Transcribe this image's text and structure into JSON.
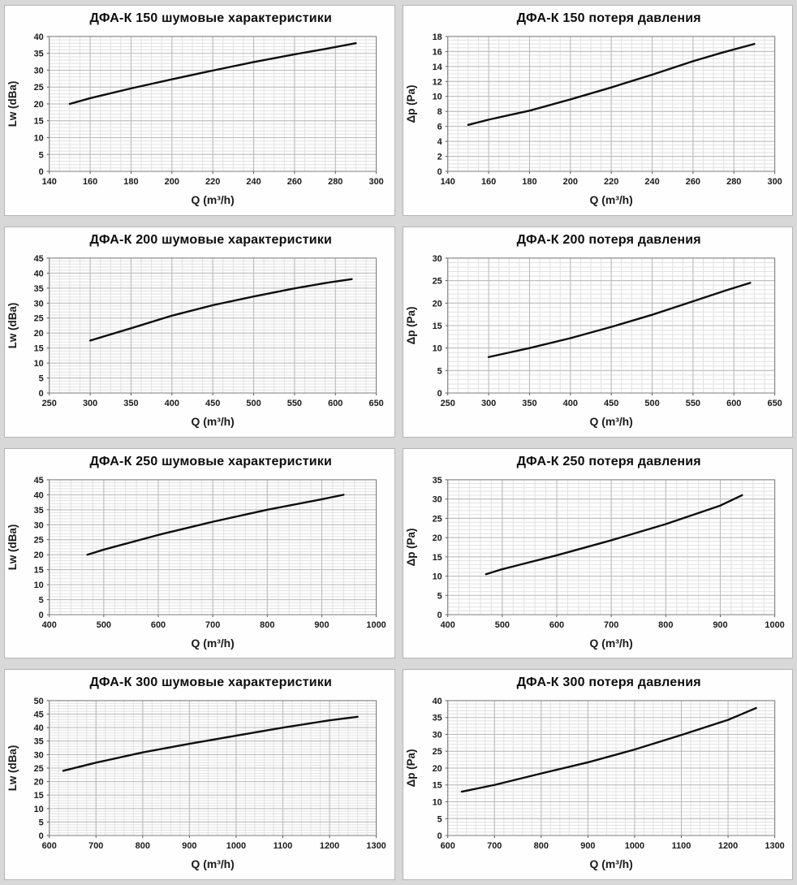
{
  "page": {
    "background": "#d8d8d8"
  },
  "colors": {
    "panel_bg": "#fefefe",
    "panel_border": "#b5b5b5",
    "grid_minor": "#e2e2e2",
    "grid_major": "#b8b8b8",
    "plot_border": "#7f7f7f",
    "tick": "#555555",
    "curve": "#0d0d0d",
    "text": "#1a1a1a"
  },
  "chart_data": [
    {
      "type": "line",
      "title": "ДФА-К 150 шумовые характеристики",
      "xlabel": "Q (m³/h)",
      "ylabel": "Lw (dBa)",
      "xlim": [
        140,
        300
      ],
      "ylim": [
        0,
        40
      ],
      "x_major": 20,
      "y_major": 5,
      "x_minor_div": 4,
      "y_minor_div": 5,
      "grid": "on",
      "legend": "none",
      "points": [
        [
          150,
          20
        ],
        [
          160,
          21.7
        ],
        [
          180,
          24.6
        ],
        [
          200,
          27.3
        ],
        [
          220,
          29.9
        ],
        [
          240,
          32.4
        ],
        [
          260,
          34.7
        ],
        [
          275,
          36.3
        ],
        [
          290,
          38
        ]
      ]
    },
    {
      "type": "line",
      "title": "ДФА-К 150 потеря давления",
      "xlabel": "Q (m³/h)",
      "ylabel": "Δp (Pa)",
      "xlim": [
        140,
        300
      ],
      "ylim": [
        0,
        18
      ],
      "x_major": 20,
      "y_major": 2,
      "x_minor_div": 4,
      "y_minor_div": 4,
      "grid": "on",
      "legend": "none",
      "points": [
        [
          150,
          6.2
        ],
        [
          160,
          6.9
        ],
        [
          180,
          8.1
        ],
        [
          200,
          9.6
        ],
        [
          220,
          11.2
        ],
        [
          240,
          12.9
        ],
        [
          260,
          14.7
        ],
        [
          275,
          15.9
        ],
        [
          290,
          17
        ]
      ]
    },
    {
      "type": "line",
      "title": "ДФА-К 200 шумовые характеристики",
      "xlabel": "Q (m³/h)",
      "ylabel": "Lw (dBa)",
      "xlim": [
        250,
        650
      ],
      "ylim": [
        0,
        45
      ],
      "x_major": 50,
      "y_major": 5,
      "x_minor_div": 4,
      "y_minor_div": 5,
      "grid": "on",
      "legend": "none",
      "points": [
        [
          300,
          17.5
        ],
        [
          350,
          21.6
        ],
        [
          400,
          25.8
        ],
        [
          450,
          29.3
        ],
        [
          500,
          32.2
        ],
        [
          550,
          34.9
        ],
        [
          590,
          36.8
        ],
        [
          620,
          38
        ]
      ]
    },
    {
      "type": "line",
      "title": "ДФА-К 200 потеря давления",
      "xlabel": "Q (m³/h)",
      "ylabel": "Δp (Pa)",
      "xlim": [
        250,
        650
      ],
      "ylim": [
        0,
        30
      ],
      "x_major": 50,
      "y_major": 5,
      "x_minor_div": 4,
      "y_minor_div": 5,
      "grid": "on",
      "legend": "none",
      "points": [
        [
          300,
          8
        ],
        [
          350,
          10
        ],
        [
          400,
          12.2
        ],
        [
          450,
          14.7
        ],
        [
          500,
          17.4
        ],
        [
          550,
          20.4
        ],
        [
          590,
          22.8
        ],
        [
          620,
          24.5
        ]
      ]
    },
    {
      "type": "line",
      "title": "ДФА-К 250 шумовые характеристики",
      "xlabel": "Q (m³/h)",
      "ylabel": "Lw (dBa)",
      "xlim": [
        400,
        1000
      ],
      "ylim": [
        0,
        45
      ],
      "x_major": 100,
      "y_major": 5,
      "x_minor_div": 5,
      "y_minor_div": 5,
      "grid": "on",
      "legend": "none",
      "points": [
        [
          470,
          20
        ],
        [
          500,
          21.7
        ],
        [
          600,
          26.6
        ],
        [
          700,
          31
        ],
        [
          800,
          35
        ],
        [
          900,
          38.5
        ],
        [
          940,
          40
        ]
      ]
    },
    {
      "type": "line",
      "title": "ДФА-К 250 потеря давления",
      "xlabel": "Q (m³/h)",
      "ylabel": "Δp (Pa)",
      "xlim": [
        400,
        1000
      ],
      "ylim": [
        0,
        35
      ],
      "x_major": 100,
      "y_major": 5,
      "x_minor_div": 5,
      "y_minor_div": 5,
      "grid": "on",
      "legend": "none",
      "points": [
        [
          470,
          10.5
        ],
        [
          500,
          11.8
        ],
        [
          600,
          15.4
        ],
        [
          700,
          19.3
        ],
        [
          800,
          23.5
        ],
        [
          900,
          28.3
        ],
        [
          940,
          31
        ]
      ]
    },
    {
      "type": "line",
      "title": "ДФА-К 300 шумовые характеристики",
      "xlabel": "Q (m³/h)",
      "ylabel": "Lw (dBa)",
      "xlim": [
        600,
        1300
      ],
      "ylim": [
        0,
        50
      ],
      "x_major": 100,
      "y_major": 5,
      "x_minor_div": 5,
      "y_minor_div": 5,
      "grid": "on",
      "legend": "none",
      "points": [
        [
          630,
          24
        ],
        [
          700,
          27
        ],
        [
          800,
          30.8
        ],
        [
          900,
          34
        ],
        [
          1000,
          37
        ],
        [
          1100,
          40
        ],
        [
          1200,
          42.7
        ],
        [
          1260,
          44
        ]
      ]
    },
    {
      "type": "line",
      "title": "ДФА-К 300 потеря давления",
      "xlabel": "Q (m³/h)",
      "ylabel": "Δp (Pa)",
      "xlim": [
        600,
        1300
      ],
      "ylim": [
        0,
        40
      ],
      "x_major": 100,
      "y_major": 5,
      "x_minor_div": 5,
      "y_minor_div": 5,
      "grid": "on",
      "legend": "none",
      "points": [
        [
          630,
          13
        ],
        [
          700,
          15
        ],
        [
          800,
          18.4
        ],
        [
          900,
          21.7
        ],
        [
          1000,
          25.5
        ],
        [
          1100,
          29.8
        ],
        [
          1200,
          34.3
        ],
        [
          1260,
          37.8
        ]
      ]
    }
  ]
}
